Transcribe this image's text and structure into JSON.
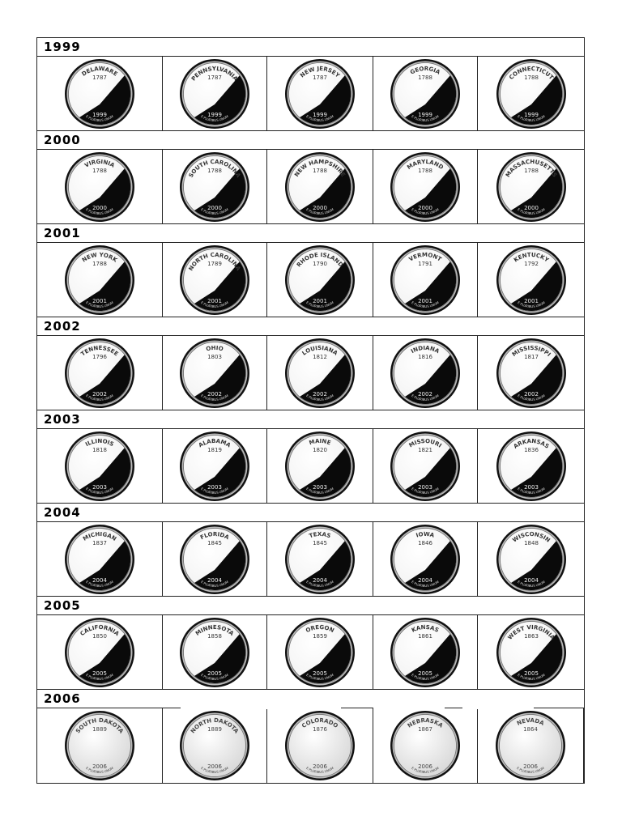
{
  "rows": [
    {
      "year": "1999",
      "coins": [
        {
          "state": "DELAWARE",
          "statehood": "1787",
          "minted": "1999",
          "motto": "E PLURIBUS UNUM"
        },
        {
          "state": "PENNSYLVANIA",
          "statehood": "1787",
          "minted": "1999",
          "motto": "E PLURIBUS UNUM"
        },
        {
          "state": "NEW JERSEY",
          "statehood": "1787",
          "minted": "1999",
          "motto": "E PLURIBUS UNUM"
        },
        {
          "state": "GEORGIA",
          "statehood": "1788",
          "minted": "1999",
          "motto": "E PLURIBUS UNUM"
        },
        {
          "state": "CONNECTICUT",
          "statehood": "1788",
          "minted": "1999",
          "motto": "E PLURIBUS UNUM"
        }
      ]
    },
    {
      "year": "2000",
      "coins": [
        {
          "state": "VIRGINIA",
          "statehood": "1788",
          "minted": "2000",
          "motto": "E PLURIBUS UNUM"
        },
        {
          "state": "SOUTH CAROLINA",
          "statehood": "1788",
          "minted": "2000",
          "motto": "E PLURIBUS UNUM"
        },
        {
          "state": "NEW HAMPSHIRE",
          "statehood": "1788",
          "minted": "2000",
          "motto": "E PLURIBUS UNUM"
        },
        {
          "state": "MARYLAND",
          "statehood": "1788",
          "minted": "2000",
          "motto": "E PLURIBUS UNUM"
        },
        {
          "state": "MASSACHUSETTS",
          "statehood": "1788",
          "minted": "2000",
          "motto": "E PLURIBUS UNUM"
        }
      ]
    },
    {
      "year": "2001",
      "coins": [
        {
          "state": "NEW YORK",
          "statehood": "1788",
          "minted": "2001",
          "motto": "E PLURIBUS UNUM"
        },
        {
          "state": "NORTH CAROLINA",
          "statehood": "1789",
          "minted": "2001",
          "motto": "E PLURIBUS UNUM"
        },
        {
          "state": "RHODE ISLAND",
          "statehood": "1790",
          "minted": "2001",
          "motto": "E PLURIBUS UNUM"
        },
        {
          "state": "VERMONT",
          "statehood": "1791",
          "minted": "2001",
          "motto": "E PLURIBUS UNUM"
        },
        {
          "state": "KENTUCKY",
          "statehood": "1792",
          "minted": "2001",
          "motto": "E PLURIBUS UNUM"
        }
      ]
    },
    {
      "year": "2002",
      "coins": [
        {
          "state": "TENNESSEE",
          "statehood": "1796",
          "minted": "2002",
          "motto": "E PLURIBUS UNUM"
        },
        {
          "state": "OHIO",
          "statehood": "1803",
          "minted": "2002",
          "motto": "E PLURIBUS UNUM"
        },
        {
          "state": "LOUISIANA",
          "statehood": "1812",
          "minted": "2002",
          "motto": "E PLURIBUS UNUM"
        },
        {
          "state": "INDIANA",
          "statehood": "1816",
          "minted": "2002",
          "motto": "E PLURIBUS UNUM"
        },
        {
          "state": "MISSISSIPPI",
          "statehood": "1817",
          "minted": "2002",
          "motto": "E PLURIBUS UNUM"
        }
      ]
    },
    {
      "year": "2003",
      "coins": [
        {
          "state": "ILLINOIS",
          "statehood": "1818",
          "minted": "2003",
          "motto": "E PLURIBUS UNUM"
        },
        {
          "state": "ALABAMA",
          "statehood": "1819",
          "minted": "2003",
          "motto": "E PLURIBUS UNUM"
        },
        {
          "state": "MAINE",
          "statehood": "1820",
          "minted": "2003",
          "motto": "E PLURIBUS UNUM"
        },
        {
          "state": "MISSOURI",
          "statehood": "1821",
          "minted": "2003",
          "motto": "E PLURIBUS UNUM"
        },
        {
          "state": "ARKANSAS",
          "statehood": "1836",
          "minted": "2003",
          "motto": "E PLURIBUS UNUM"
        }
      ]
    },
    {
      "year": "2004",
      "coins": [
        {
          "state": "MICHIGAN",
          "statehood": "1837",
          "minted": "2004",
          "motto": "E PLURIBUS UNUM"
        },
        {
          "state": "FLORIDA",
          "statehood": "1845",
          "minted": "2004",
          "motto": "E PLURIBUS UNUM"
        },
        {
          "state": "TEXAS",
          "statehood": "1845",
          "minted": "2004",
          "motto": "E PLURIBUS UNUM"
        },
        {
          "state": "IOWA",
          "statehood": "1846",
          "minted": "2004",
          "motto": "E PLURIBUS UNUM"
        },
        {
          "state": "WISCONSIN",
          "statehood": "1848",
          "minted": "2004",
          "motto": "E PLURIBUS UNUM"
        }
      ]
    },
    {
      "year": "2005",
      "coins": [
        {
          "state": "CALIFORNIA",
          "statehood": "1850",
          "minted": "2005",
          "motto": "E PLURIBUS UNUM"
        },
        {
          "state": "MINNESOTA",
          "statehood": "1858",
          "minted": "2005",
          "motto": "E PLURIBUS UNUM"
        },
        {
          "state": "OREGON",
          "statehood": "1859",
          "minted": "2005",
          "motto": "E PLURIBUS UNUM"
        },
        {
          "state": "KANSAS",
          "statehood": "1861",
          "minted": "2005",
          "motto": "E PLURIBUS UNUM"
        },
        {
          "state": "WEST VIRGINIA",
          "statehood": "1863",
          "minted": "2005",
          "motto": "E PLURIBUS UNUM"
        }
      ]
    },
    {
      "year": "2006",
      "coins": [
        {
          "state": "SOUTH DAKOTA",
          "statehood": "1889",
          "minted": "2006",
          "motto": "E PLURIBUS UNUM"
        },
        {
          "state": "NORTH DAKOTA",
          "statehood": "1889",
          "minted": "2006",
          "motto": "E PLURIBUS UNUM"
        },
        {
          "state": "COLORADO",
          "statehood": "1876",
          "minted": "2006",
          "motto": "E PLURIBUS UNUM"
        },
        {
          "state": "NEBRASKA",
          "statehood": "1867",
          "minted": "2006",
          "motto": "E PLURIBUS UNUM"
        },
        {
          "state": "NEVADA",
          "statehood": "1864",
          "minted": "2006",
          "motto": "E PLURIBUS UNUM"
        }
      ]
    }
  ],
  "colors": {
    "border": "#222222",
    "proof_dark": "#0a0a0a",
    "proof_light": "#f2f2f2",
    "satin": "#d8d8d8"
  }
}
